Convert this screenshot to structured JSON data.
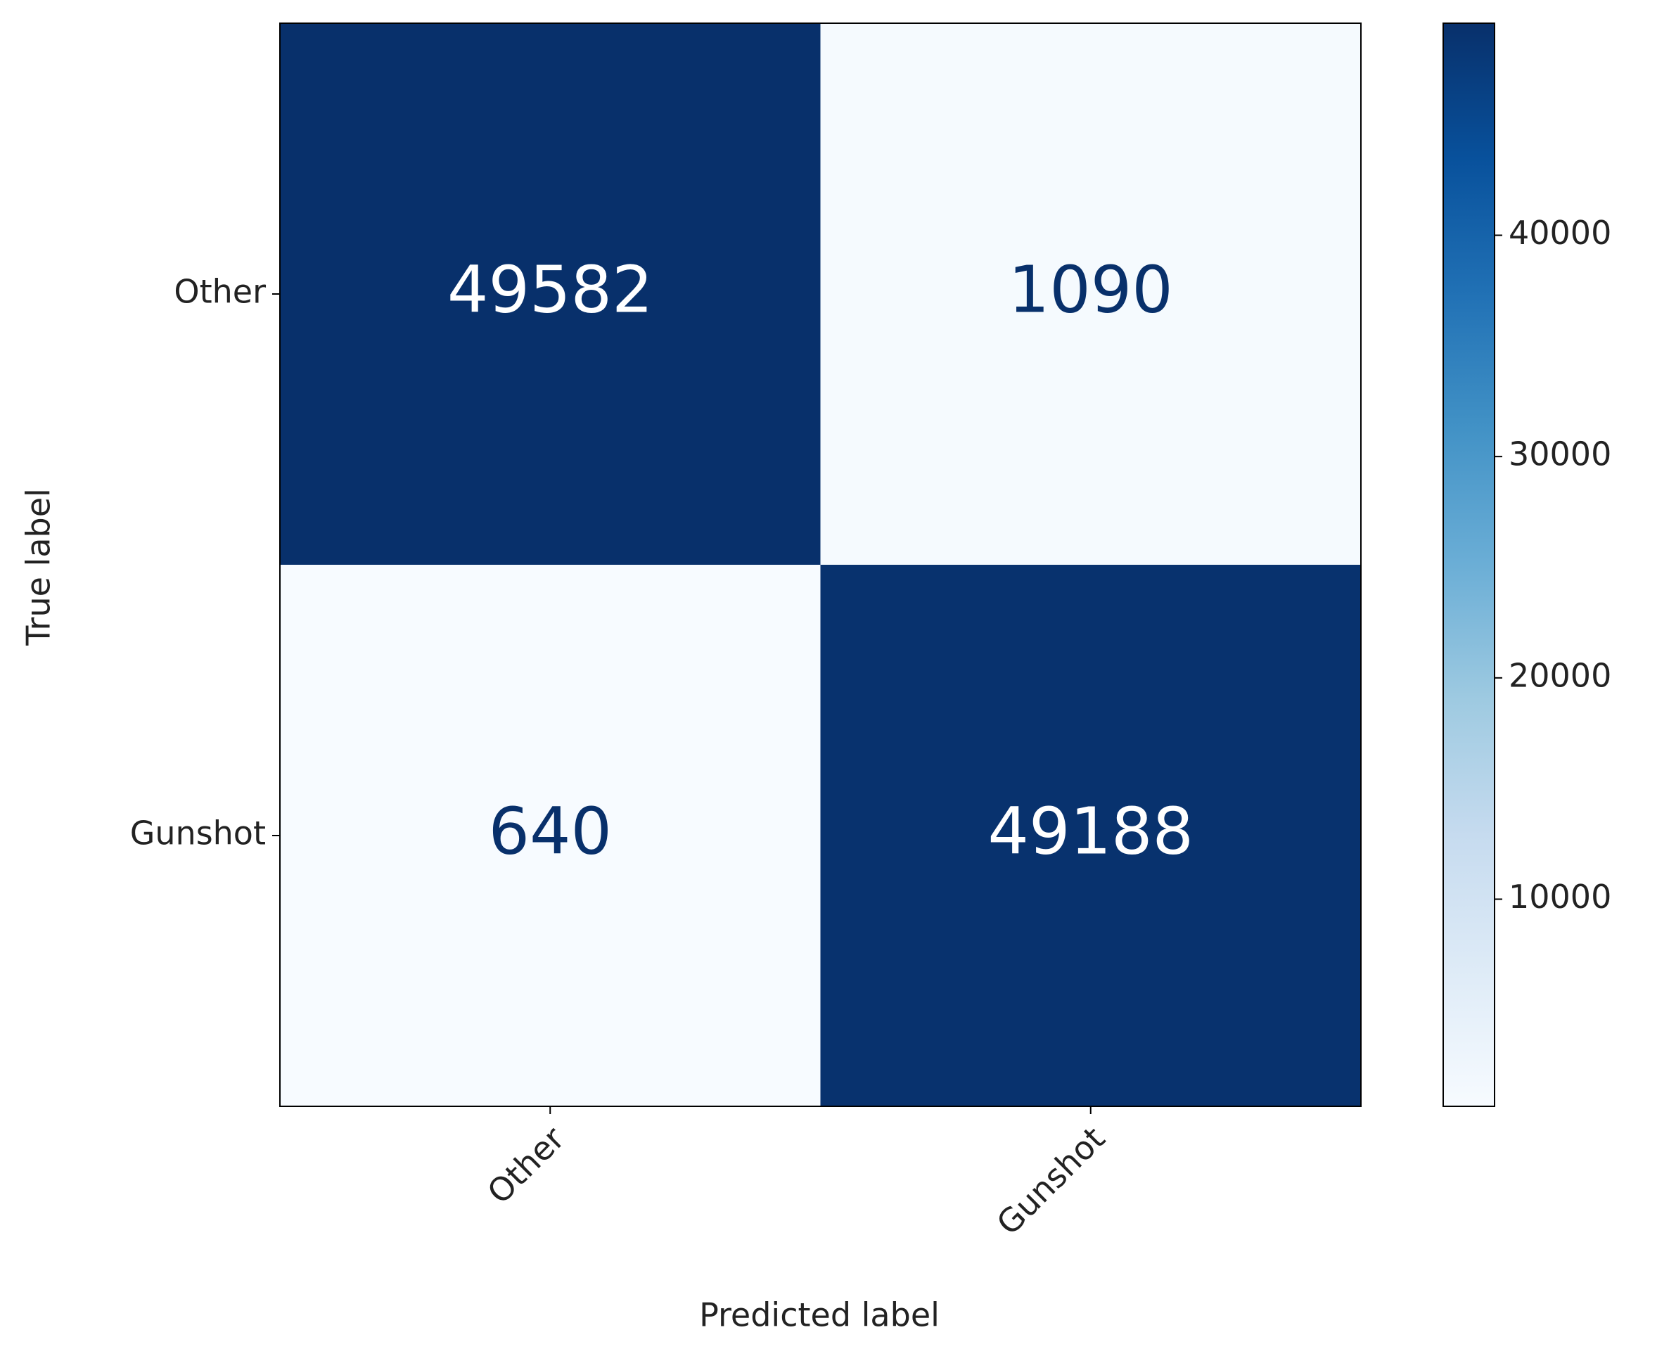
{
  "chart_data": {
    "type": "heatmap",
    "x_label": "Predicted label",
    "y_label": "True label",
    "x_categories": [
      "Other",
      "Gunshot"
    ],
    "y_categories": [
      "Other",
      "Gunshot"
    ],
    "values": [
      [
        49582,
        1090
      ],
      [
        640,
        49188
      ]
    ],
    "colorbar_lim": [
      640,
      49582
    ],
    "colorbar_ticks": [
      10000,
      20000,
      30000,
      40000
    ]
  }
}
